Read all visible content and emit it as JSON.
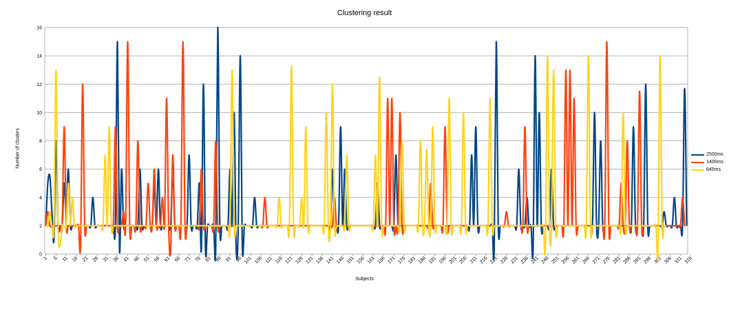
{
  "chart_data": {
    "type": "line",
    "title": "Clustering result",
    "xlabel": "Subjects",
    "ylabel": "Number of clusters",
    "ylim": [
      0,
      16
    ],
    "yticks": [
      0,
      2,
      4,
      6,
      8,
      10,
      12,
      14,
      16
    ],
    "x_tick_labels": [
      "1",
      "6",
      "11",
      "16",
      "21",
      "26",
      "31",
      "36",
      "41",
      "46",
      "51",
      "56",
      "61",
      "66",
      "71",
      "76",
      "81",
      "86",
      "91",
      "96",
      "101",
      "106",
      "111",
      "116",
      "121",
      "126",
      "131",
      "136",
      "141",
      "146",
      "151",
      "156",
      "161",
      "166",
      "171",
      "176",
      "181",
      "186",
      "191",
      "196",
      "201",
      "206",
      "211",
      "216",
      "221",
      "226",
      "231",
      "236",
      "241",
      "246",
      "251",
      "256",
      "261",
      "266",
      "271",
      "276",
      "281",
      "286",
      "291",
      "296",
      "301",
      "306",
      "311",
      "316"
    ],
    "grid": "horizontal",
    "legend_position": "right",
    "series": [
      {
        "name": "2500ms",
        "color": "#004586",
        "values": [
          2,
          5,
          5.5,
          3,
          1,
          8,
          2,
          2,
          2,
          5,
          3,
          6,
          2,
          2,
          2,
          2,
          2,
          2,
          2,
          2,
          2,
          2,
          2,
          4,
          2,
          2,
          2,
          2,
          2,
          2,
          2,
          2,
          2,
          2,
          2,
          15,
          0.3,
          6,
          2,
          2,
          2,
          2,
          2,
          2,
          2,
          2,
          6,
          2,
          2,
          2,
          2,
          2,
          2,
          5,
          2,
          6,
          2,
          2,
          2,
          2,
          2,
          2,
          6,
          2,
          2,
          2,
          2,
          2,
          2,
          2,
          7,
          2,
          2,
          2,
          2,
          5,
          0.3,
          12,
          0.3,
          2,
          2,
          2,
          2,
          0.3,
          16,
          2,
          2,
          2,
          2,
          2,
          6,
          2,
          10,
          0.3,
          2,
          14,
          0.5,
          2,
          2,
          2,
          2,
          2,
          4,
          2,
          2,
          2,
          2,
          2,
          2,
          2,
          2,
          2,
          2,
          2,
          2,
          2,
          2,
          2,
          2,
          2,
          2,
          2,
          2,
          2,
          2,
          2,
          2,
          2,
          2,
          2,
          2,
          2,
          2,
          2,
          2,
          2,
          2,
          2,
          2,
          2,
          6,
          2,
          2,
          2,
          9,
          2,
          6,
          2,
          2,
          2,
          2,
          2,
          2,
          2,
          2,
          2,
          2,
          2,
          2,
          2,
          2,
          2,
          5,
          2,
          2,
          2,
          2,
          2,
          2,
          2,
          2,
          7,
          2,
          2,
          2,
          2,
          2,
          2,
          2,
          2,
          2,
          2,
          2,
          2,
          2,
          2,
          2,
          2,
          2,
          2,
          2,
          2,
          2,
          2,
          2,
          2,
          2,
          2,
          2,
          2,
          2,
          2,
          2,
          2,
          2,
          2,
          2,
          2,
          7,
          2,
          9,
          2,
          2,
          2,
          2,
          2,
          2,
          2,
          2,
          0.3,
          15,
          2,
          2,
          2,
          2,
          2,
          2,
          2,
          2,
          2,
          2,
          6,
          2,
          2,
          2,
          4,
          2,
          2,
          0.3,
          14,
          2,
          10,
          2,
          2,
          2,
          2,
          2,
          6,
          2,
          2,
          2,
          2,
          2,
          2,
          2,
          2,
          2,
          2,
          2,
          2,
          2,
          2,
          2,
          2,
          2,
          2,
          2,
          2,
          10,
          2,
          2,
          8,
          2,
          2,
          2,
          2,
          2,
          2,
          2,
          2,
          2,
          2,
          2,
          2,
          2,
          2,
          2,
          9,
          2,
          2,
          2,
          2,
          2,
          12,
          2,
          2,
          2,
          2,
          2,
          2,
          2,
          2,
          3,
          2,
          2,
          2,
          2,
          4,
          2,
          2,
          2,
          2,
          11.7,
          2
        ]
      },
      {
        "name": "1400ms",
        "color": "#ff420e",
        "values": [
          2,
          3,
          2,
          2,
          2,
          2,
          2,
          2,
          2,
          9,
          2,
          2,
          2,
          2,
          2,
          2,
          2,
          0.6,
          12,
          2,
          2,
          2,
          2,
          2,
          2,
          2,
          2,
          2,
          2,
          2,
          2,
          2,
          2,
          2,
          9,
          2,
          2,
          2,
          3,
          2,
          15,
          2,
          2,
          2,
          2,
          8,
          2,
          2,
          2,
          2,
          5,
          2,
          2,
          6,
          2,
          2,
          2,
          4,
          2,
          11,
          2,
          0.2,
          7,
          2,
          2,
          2,
          2,
          15,
          2,
          2,
          2,
          2,
          2,
          2,
          2,
          2,
          6,
          2,
          2,
          2,
          2,
          2,
          2,
          8,
          2,
          2,
          2,
          2,
          2,
          2,
          2,
          2,
          2,
          2,
          2,
          2,
          2,
          2,
          2,
          2,
          2,
          2,
          2,
          2,
          2,
          2,
          2,
          4,
          2,
          2,
          2,
          2,
          2,
          2,
          2,
          2,
          2,
          2,
          2,
          2,
          2,
          2,
          2,
          2,
          2,
          2,
          2,
          2,
          2,
          2,
          2,
          2,
          2,
          2,
          2,
          2,
          2,
          2,
          2,
          2,
          2,
          4,
          2,
          2,
          2,
          2,
          2,
          2,
          2,
          2,
          2,
          2,
          2,
          2,
          2,
          2,
          2,
          2,
          2,
          2,
          2,
          2,
          2,
          2,
          2,
          2,
          2,
          11,
          2,
          11,
          2,
          2,
          2,
          10,
          2,
          2,
          2,
          2,
          2,
          2,
          2,
          2,
          2,
          2,
          2,
          2,
          2,
          2,
          5,
          2,
          2,
          2,
          2,
          2,
          2,
          9,
          2,
          2,
          2,
          2,
          2,
          2,
          2,
          2,
          2,
          2,
          2,
          2,
          2,
          2,
          2,
          2,
          2,
          2,
          2,
          2,
          2,
          2,
          2,
          2,
          2,
          2,
          2,
          2,
          2,
          3,
          2,
          2,
          2,
          2,
          2,
          2,
          2,
          2,
          9,
          2,
          2,
          2,
          2,
          2,
          2,
          2,
          2,
          2,
          2,
          2,
          2,
          2,
          2,
          2,
          2,
          2,
          2,
          2,
          13,
          2,
          13,
          2,
          11,
          2,
          2,
          2,
          2,
          2,
          2,
          2,
          2,
          2,
          2,
          2,
          2,
          2,
          2,
          2,
          15,
          2,
          2,
          2,
          2,
          2,
          2,
          5,
          2,
          2,
          8,
          2,
          2,
          2,
          2,
          2,
          11.5,
          2,
          2,
          2,
          2,
          2,
          2,
          2,
          2,
          2,
          2,
          2,
          2,
          2,
          2,
          2,
          2,
          2,
          2,
          2,
          2,
          4,
          2
        ]
      },
      {
        "name": "645ms",
        "color": "#ffd320",
        "values": [
          2,
          2,
          3,
          2,
          2,
          13,
          2,
          0.6,
          2,
          2,
          2,
          5,
          2,
          4,
          2,
          2,
          2,
          2,
          2,
          2,
          2,
          2,
          2,
          2,
          2,
          2,
          2,
          2,
          2,
          7,
          2,
          9,
          2,
          2,
          2,
          2,
          2,
          2,
          2,
          2,
          2,
          2,
          2,
          2,
          2,
          2,
          2,
          2,
          2,
          2,
          2,
          2,
          2,
          2,
          2,
          2,
          2,
          2,
          2,
          2,
          2,
          2,
          2,
          2,
          2,
          2,
          2,
          2,
          2,
          2,
          2,
          2,
          2,
          2,
          2,
          2,
          2,
          2,
          2,
          2,
          2,
          2,
          2,
          2,
          2,
          2,
          2,
          2,
          2,
          2,
          2,
          13,
          2,
          2,
          2,
          2,
          2,
          2,
          2,
          2,
          2,
          2,
          2,
          2,
          2,
          2,
          2,
          2,
          2,
          2,
          2,
          2,
          2,
          2,
          4,
          2,
          2,
          2,
          2,
          2,
          13.3,
          2,
          2,
          2,
          2,
          4,
          2,
          9,
          2,
          2,
          2,
          2,
          2,
          2,
          2,
          2,
          2,
          10,
          2,
          2,
          12,
          2,
          2,
          2,
          2,
          2,
          2,
          7,
          2,
          2,
          2,
          2,
          2,
          2,
          2,
          2,
          2,
          2,
          2,
          2,
          2,
          7,
          2,
          12.5,
          2,
          2,
          2,
          2,
          2,
          2,
          2,
          2,
          2,
          2,
          8,
          2,
          2,
          2,
          2,
          2,
          2,
          2,
          2,
          8,
          2,
          2,
          7.4,
          2,
          2,
          9,
          2,
          2,
          2,
          2,
          2,
          2,
          2,
          11,
          2,
          2,
          2,
          2,
          2,
          2,
          10,
          2,
          2,
          2,
          2,
          2,
          2,
          2,
          2,
          2,
          2,
          2,
          2,
          11,
          2,
          2,
          2,
          2,
          2,
          2,
          2,
          2,
          2,
          2,
          2,
          2,
          2,
          2,
          2,
          2,
          2,
          2,
          2,
          2,
          2,
          2,
          2,
          2,
          2,
          2,
          0.6,
          14,
          2,
          2,
          13,
          2,
          2,
          2,
          2,
          2,
          2,
          2,
          2,
          2,
          2,
          2,
          2,
          2,
          2,
          2,
          2,
          14,
          2,
          2,
          2,
          2,
          2,
          2,
          2,
          2,
          2,
          2,
          2,
          2,
          2,
          2,
          2,
          2,
          10,
          2,
          2,
          2,
          2,
          2,
          2,
          2,
          2,
          2,
          2,
          2,
          2,
          2,
          2,
          2,
          2,
          0.3,
          14,
          2,
          2,
          2
        ]
      }
    ]
  }
}
